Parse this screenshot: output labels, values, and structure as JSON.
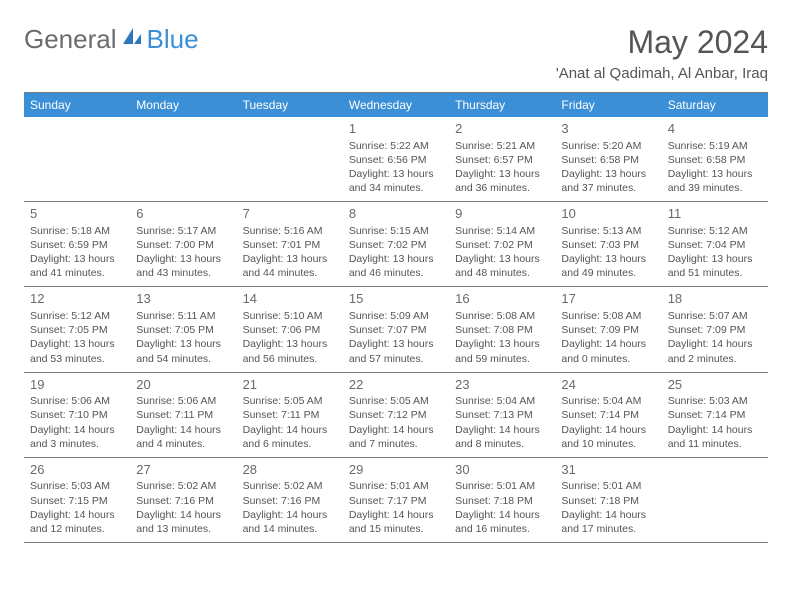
{
  "logo": {
    "part1": "General",
    "part2": "Blue"
  },
  "title": "May 2024",
  "location": "'Anat al Qadimah, Al Anbar, Iraq",
  "dayNames": [
    "Sunday",
    "Monday",
    "Tuesday",
    "Wednesday",
    "Thursday",
    "Friday",
    "Saturday"
  ],
  "colors": {
    "headerBg": "#3b8fd6",
    "headerText": "#ffffff",
    "border": "#7a7a7a",
    "text": "#555555"
  },
  "weeks": [
    [
      null,
      null,
      null,
      {
        "n": "1",
        "sr": "5:22 AM",
        "ss": "6:56 PM",
        "dl1": "13 hours",
        "dl2": "and 34 minutes."
      },
      {
        "n": "2",
        "sr": "5:21 AM",
        "ss": "6:57 PM",
        "dl1": "13 hours",
        "dl2": "and 36 minutes."
      },
      {
        "n": "3",
        "sr": "5:20 AM",
        "ss": "6:58 PM",
        "dl1": "13 hours",
        "dl2": "and 37 minutes."
      },
      {
        "n": "4",
        "sr": "5:19 AM",
        "ss": "6:58 PM",
        "dl1": "13 hours",
        "dl2": "and 39 minutes."
      }
    ],
    [
      {
        "n": "5",
        "sr": "5:18 AM",
        "ss": "6:59 PM",
        "dl1": "13 hours",
        "dl2": "and 41 minutes."
      },
      {
        "n": "6",
        "sr": "5:17 AM",
        "ss": "7:00 PM",
        "dl1": "13 hours",
        "dl2": "and 43 minutes."
      },
      {
        "n": "7",
        "sr": "5:16 AM",
        "ss": "7:01 PM",
        "dl1": "13 hours",
        "dl2": "and 44 minutes."
      },
      {
        "n": "8",
        "sr": "5:15 AM",
        "ss": "7:02 PM",
        "dl1": "13 hours",
        "dl2": "and 46 minutes."
      },
      {
        "n": "9",
        "sr": "5:14 AM",
        "ss": "7:02 PM",
        "dl1": "13 hours",
        "dl2": "and 48 minutes."
      },
      {
        "n": "10",
        "sr": "5:13 AM",
        "ss": "7:03 PM",
        "dl1": "13 hours",
        "dl2": "and 49 minutes."
      },
      {
        "n": "11",
        "sr": "5:12 AM",
        "ss": "7:04 PM",
        "dl1": "13 hours",
        "dl2": "and 51 minutes."
      }
    ],
    [
      {
        "n": "12",
        "sr": "5:12 AM",
        "ss": "7:05 PM",
        "dl1": "13 hours",
        "dl2": "and 53 minutes."
      },
      {
        "n": "13",
        "sr": "5:11 AM",
        "ss": "7:05 PM",
        "dl1": "13 hours",
        "dl2": "and 54 minutes."
      },
      {
        "n": "14",
        "sr": "5:10 AM",
        "ss": "7:06 PM",
        "dl1": "13 hours",
        "dl2": "and 56 minutes."
      },
      {
        "n": "15",
        "sr": "5:09 AM",
        "ss": "7:07 PM",
        "dl1": "13 hours",
        "dl2": "and 57 minutes."
      },
      {
        "n": "16",
        "sr": "5:08 AM",
        "ss": "7:08 PM",
        "dl1": "13 hours",
        "dl2": "and 59 minutes."
      },
      {
        "n": "17",
        "sr": "5:08 AM",
        "ss": "7:09 PM",
        "dl1": "14 hours",
        "dl2": "and 0 minutes."
      },
      {
        "n": "18",
        "sr": "5:07 AM",
        "ss": "7:09 PM",
        "dl1": "14 hours",
        "dl2": "and 2 minutes."
      }
    ],
    [
      {
        "n": "19",
        "sr": "5:06 AM",
        "ss": "7:10 PM",
        "dl1": "14 hours",
        "dl2": "and 3 minutes."
      },
      {
        "n": "20",
        "sr": "5:06 AM",
        "ss": "7:11 PM",
        "dl1": "14 hours",
        "dl2": "and 4 minutes."
      },
      {
        "n": "21",
        "sr": "5:05 AM",
        "ss": "7:11 PM",
        "dl1": "14 hours",
        "dl2": "and 6 minutes."
      },
      {
        "n": "22",
        "sr": "5:05 AM",
        "ss": "7:12 PM",
        "dl1": "14 hours",
        "dl2": "and 7 minutes."
      },
      {
        "n": "23",
        "sr": "5:04 AM",
        "ss": "7:13 PM",
        "dl1": "14 hours",
        "dl2": "and 8 minutes."
      },
      {
        "n": "24",
        "sr": "5:04 AM",
        "ss": "7:14 PM",
        "dl1": "14 hours",
        "dl2": "and 10 minutes."
      },
      {
        "n": "25",
        "sr": "5:03 AM",
        "ss": "7:14 PM",
        "dl1": "14 hours",
        "dl2": "and 11 minutes."
      }
    ],
    [
      {
        "n": "26",
        "sr": "5:03 AM",
        "ss": "7:15 PM",
        "dl1": "14 hours",
        "dl2": "and 12 minutes."
      },
      {
        "n": "27",
        "sr": "5:02 AM",
        "ss": "7:16 PM",
        "dl1": "14 hours",
        "dl2": "and 13 minutes."
      },
      {
        "n": "28",
        "sr": "5:02 AM",
        "ss": "7:16 PM",
        "dl1": "14 hours",
        "dl2": "and 14 minutes."
      },
      {
        "n": "29",
        "sr": "5:01 AM",
        "ss": "7:17 PM",
        "dl1": "14 hours",
        "dl2": "and 15 minutes."
      },
      {
        "n": "30",
        "sr": "5:01 AM",
        "ss": "7:18 PM",
        "dl1": "14 hours",
        "dl2": "and 16 minutes."
      },
      {
        "n": "31",
        "sr": "5:01 AM",
        "ss": "7:18 PM",
        "dl1": "14 hours",
        "dl2": "and 17 minutes."
      },
      null
    ]
  ]
}
